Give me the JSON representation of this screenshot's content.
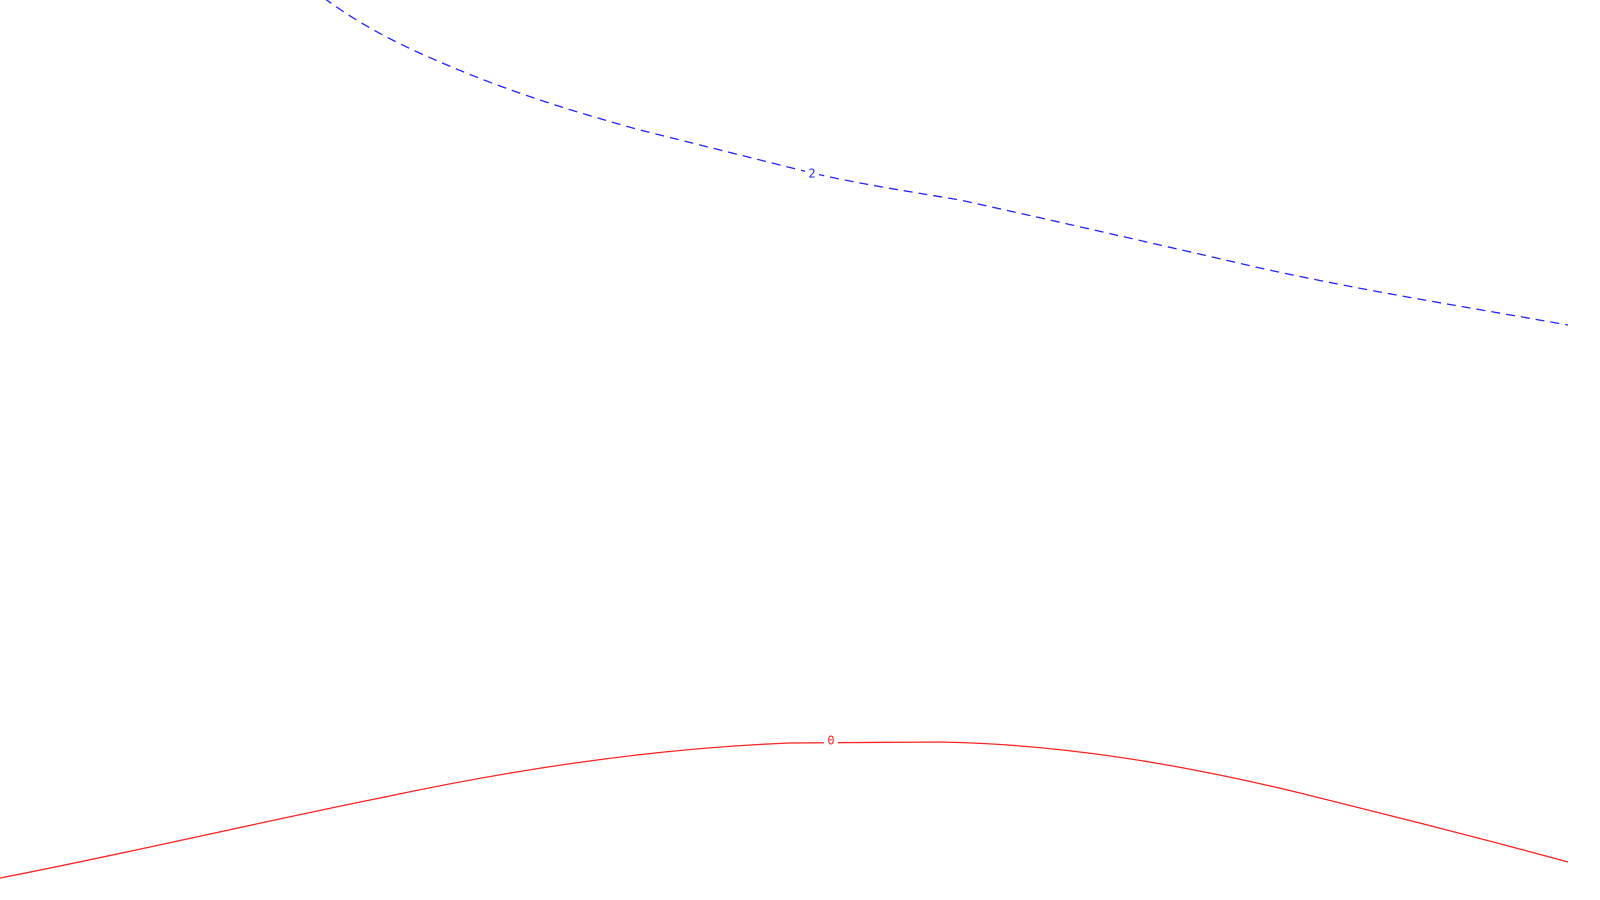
{
  "contours": [
    {
      "label": "2",
      "color": "#2222ff",
      "line_style": "dashed"
    },
    {
      "label": "0",
      "color": "#ff2222",
      "line_style": "solid"
    }
  ]
}
